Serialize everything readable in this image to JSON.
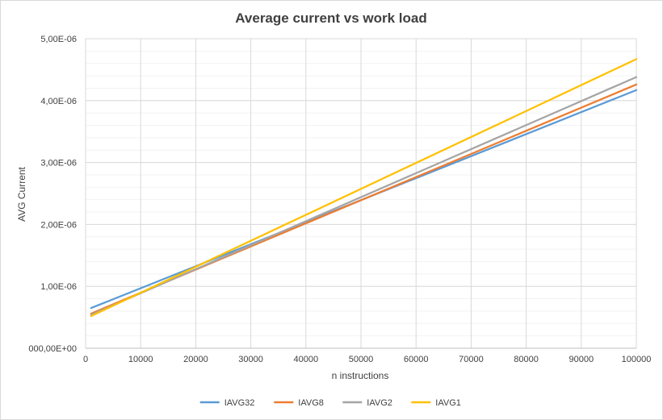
{
  "chart_data": {
    "type": "line",
    "title": "Average current vs work load",
    "xlabel": "n instructions",
    "ylabel": "AVG Current",
    "xlim": [
      0,
      100000
    ],
    "ylim": [
      0,
      5e-06
    ],
    "x_ticks": [
      0,
      10000,
      20000,
      30000,
      40000,
      50000,
      60000,
      70000,
      80000,
      90000,
      100000
    ],
    "x_tick_labels": [
      "0",
      "10000",
      "20000",
      "30000",
      "40000",
      "50000",
      "60000",
      "70000",
      "80000",
      "90000",
      "100000"
    ],
    "y_ticks": [
      0,
      1e-06,
      2e-06,
      3e-06,
      4e-06,
      5e-06
    ],
    "y_tick_labels": [
      "000,00E+00",
      "1,00E-06",
      "2,00E-06",
      "3,00E-06",
      "4,00E-06",
      "5,00E-06"
    ],
    "grid": true,
    "legend_position": "bottom",
    "series": [
      {
        "name": "IAVG32",
        "color": "#5b9bd5",
        "x": [
          1000,
          100000
        ],
        "values": [
          6.5e-07,
          4.17e-06
        ]
      },
      {
        "name": "IAVG8",
        "color": "#ed7d31",
        "x": [
          1000,
          100000
        ],
        "values": [
          5.6e-07,
          4.26e-06
        ]
      },
      {
        "name": "IAVG2",
        "color": "#a5a5a5",
        "x": [
          1000,
          100000
        ],
        "values": [
          5.4e-07,
          4.38e-06
        ]
      },
      {
        "name": "IAVG1",
        "color": "#ffc000",
        "x": [
          1000,
          100000
        ],
        "values": [
          5.2e-07,
          4.67e-06
        ]
      }
    ]
  }
}
